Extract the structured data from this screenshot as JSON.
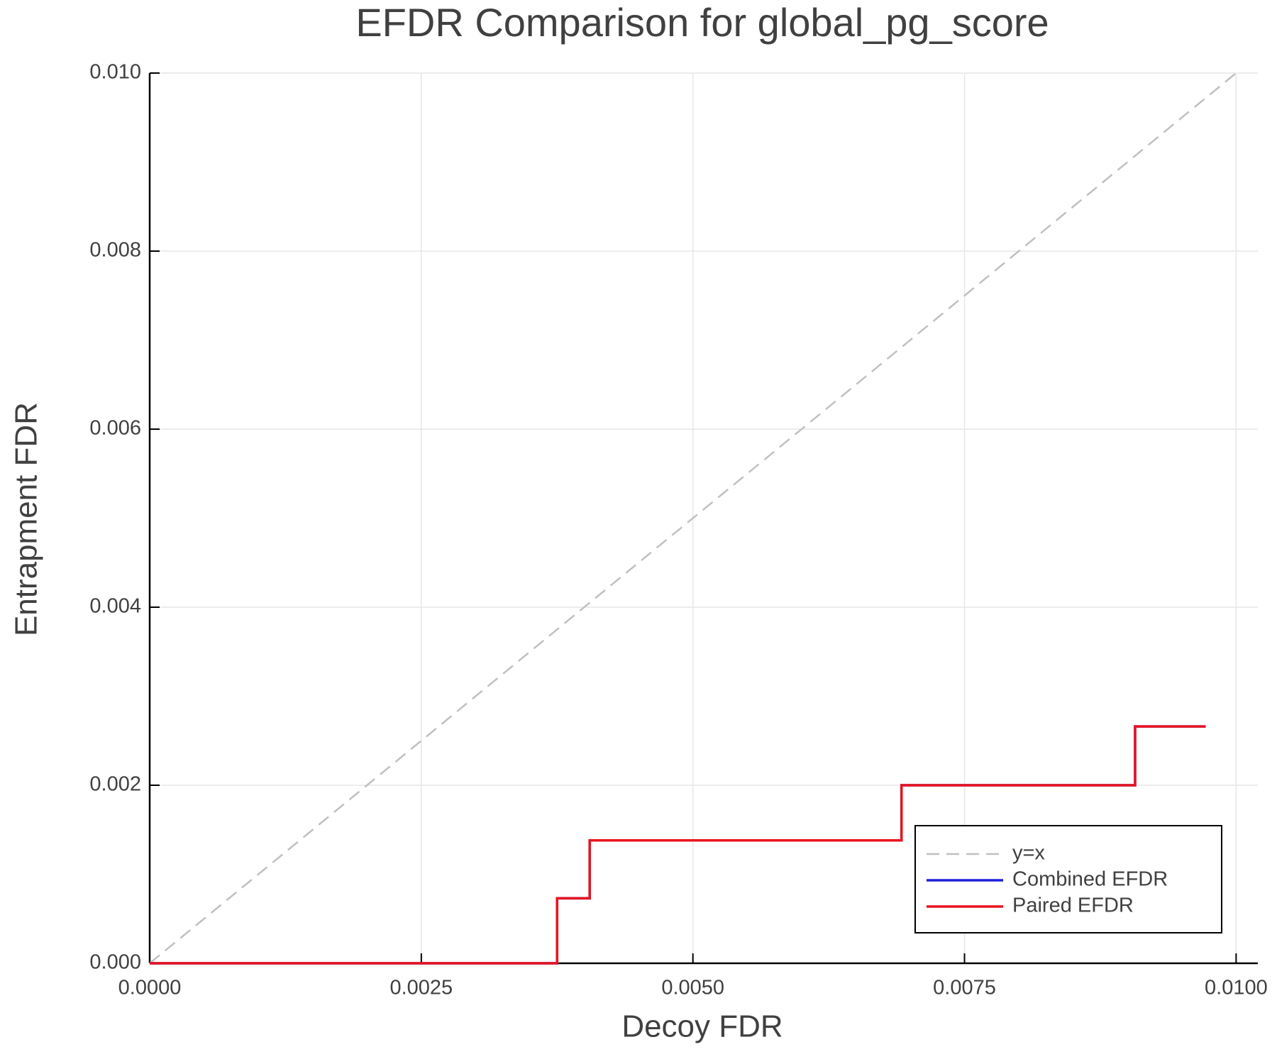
{
  "chart_data": {
    "type": "line",
    "title": "EFDR Comparison for global_pg_score",
    "x_label": "Decoy FDR",
    "y_label": "Entrapment FDR",
    "xlim": [
      0,
      0.0102
    ],
    "ylim": [
      0,
      0.01
    ],
    "xticks": [
      {
        "value": 0,
        "label": "0.0000"
      },
      {
        "value": 0.0025,
        "label": "0.0025"
      },
      {
        "value": 0.005,
        "label": "0.0050"
      },
      {
        "value": 0.0075,
        "label": "0.0075"
      },
      {
        "value": 0.01,
        "label": "0.0100"
      }
    ],
    "yticks": [
      {
        "value": 0,
        "label": "0.000"
      },
      {
        "value": 0.002,
        "label": "0.002"
      },
      {
        "value": 0.004,
        "label": "0.004"
      },
      {
        "value": 0.006,
        "label": "0.006"
      },
      {
        "value": 0.008,
        "label": "0.008"
      },
      {
        "value": 0.01,
        "label": "0.010"
      }
    ],
    "grid": true,
    "legend_position": "bottom-right",
    "series": [
      {
        "name": "y=x",
        "color": "#c0c0c0",
        "dash": true,
        "x": [
          0,
          0.01
        ],
        "values": [
          0,
          0.01
        ]
      },
      {
        "name": "Combined EFDR",
        "color": "#1f1fdc",
        "dash": false,
        "x": [
          0,
          0.00375,
          0.00375,
          0.00405,
          0.00405,
          0.00692,
          0.00692,
          0.00907,
          0.00907,
          0.00972
        ],
        "values": [
          0,
          0,
          0.00073,
          0.00073,
          0.00138,
          0.00138,
          0.002,
          0.002,
          0.00266,
          0.00266
        ]
      },
      {
        "name": "Paired EFDR",
        "color": "#e8141e",
        "dash": false,
        "x": [
          0,
          0.00375,
          0.00375,
          0.00405,
          0.00405,
          0.00692,
          0.00692,
          0.00907,
          0.00907,
          0.00972
        ],
        "values": [
          0,
          0,
          0.00073,
          0.00073,
          0.00138,
          0.00138,
          0.002,
          0.002,
          0.00266,
          0.00266
        ]
      }
    ]
  }
}
